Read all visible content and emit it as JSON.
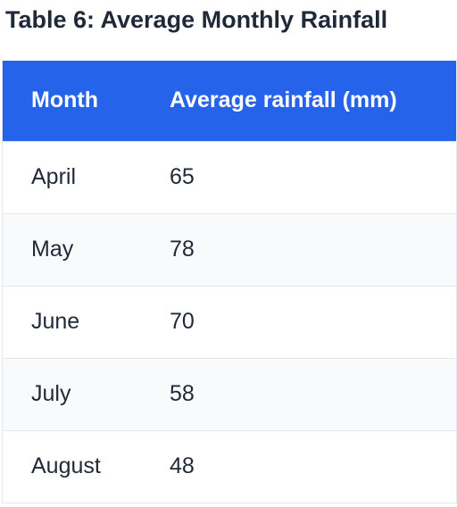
{
  "title": "Table 6: Average Monthly Rainfall",
  "table": {
    "headers": [
      "Month",
      "Average rainfall (mm)"
    ],
    "rows": [
      [
        "April",
        "65"
      ],
      [
        "May",
        "78"
      ],
      [
        "June",
        "70"
      ],
      [
        "July",
        "58"
      ],
      [
        "August",
        "48"
      ]
    ]
  },
  "colors": {
    "header_background": "#2563eb",
    "header_text": "#ffffff",
    "row_alt_background": "#f9fafb",
    "text": "#1f2937",
    "border": "#e5e7eb"
  }
}
